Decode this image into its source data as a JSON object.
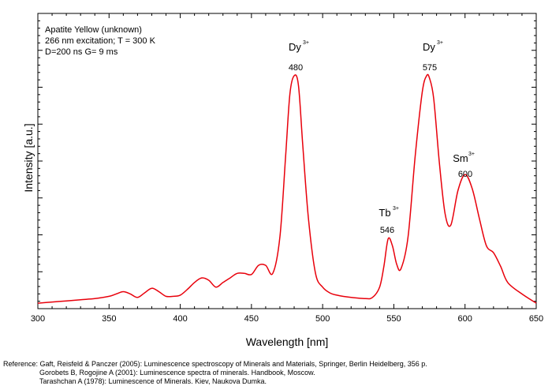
{
  "chart_data": {
    "type": "line",
    "title": "",
    "xlabel": "Wavelength [nm]",
    "ylabel": "Intensity [a.u.]",
    "xlim": [
      300,
      650
    ],
    "ylim": [
      0,
      1
    ],
    "x_ticks": [
      "300",
      "350",
      "400",
      "450",
      "500",
      "550",
      "600",
      "650"
    ],
    "y_ticks_labeled": false,
    "grid": false,
    "line_color": "#e8000b",
    "info_lines": [
      "Apatite Yellow (unknown)",
      "266 nm excitation; T = 300 K",
      "D=200 ns G= 9 ms"
    ],
    "annotations": [
      {
        "ion": "Dy",
        "charge": "3+",
        "peak": "480"
      },
      {
        "ion": "Dy",
        "charge": "3+",
        "peak": "575"
      },
      {
        "ion": "Tb",
        "charge": "3+",
        "peak": "546"
      },
      {
        "ion": "Sm",
        "charge": "3+",
        "peak": "600"
      }
    ],
    "series": [
      {
        "x": [
          300,
          310,
          320,
          330,
          340,
          350,
          355,
          360,
          365,
          370,
          375,
          380,
          385,
          390,
          395,
          400,
          405,
          410,
          415,
          420,
          425,
          430,
          435,
          440,
          445,
          450,
          455,
          460,
          465,
          470,
          474,
          477,
          480,
          483,
          486,
          490,
          495,
          500,
          505,
          510,
          520,
          530,
          535,
          540,
          543,
          546,
          549,
          552,
          555,
          560,
          565,
          570,
          573,
          575,
          578,
          582,
          586,
          590,
          595,
          600,
          605,
          610,
          615,
          620,
          625,
          630,
          640,
          650
        ],
        "y": [
          0.01,
          0.015,
          0.02,
          0.025,
          0.03,
          0.04,
          0.05,
          0.06,
          0.05,
          0.035,
          0.055,
          0.075,
          0.06,
          0.04,
          0.04,
          0.045,
          0.07,
          0.1,
          0.12,
          0.11,
          0.08,
          0.1,
          0.12,
          0.14,
          0.14,
          0.135,
          0.175,
          0.175,
          0.14,
          0.3,
          0.65,
          0.92,
          1.0,
          0.96,
          0.7,
          0.38,
          0.14,
          0.08,
          0.055,
          0.045,
          0.035,
          0.03,
          0.035,
          0.08,
          0.17,
          0.29,
          0.26,
          0.18,
          0.16,
          0.3,
          0.65,
          0.93,
          1.0,
          0.99,
          0.9,
          0.62,
          0.4,
          0.35,
          0.5,
          0.57,
          0.51,
          0.38,
          0.26,
          0.23,
          0.17,
          0.1,
          0.05,
          0.01
        ]
      }
    ],
    "references": [
      "Reference: Gaft, Reisfeld & Panczer (2005): Luminescence spectroscopy of Minerals and Materials, Springer, Berlin Heidelberg, 356 p.",
      "Gorobets B, Rogojine A (2001): Luminescence spectra of minerals. Handbook, Moscow.",
      "Tarashchan A (1978): Luminescence of Minerals. Kiev, Naukova Dumka."
    ]
  }
}
